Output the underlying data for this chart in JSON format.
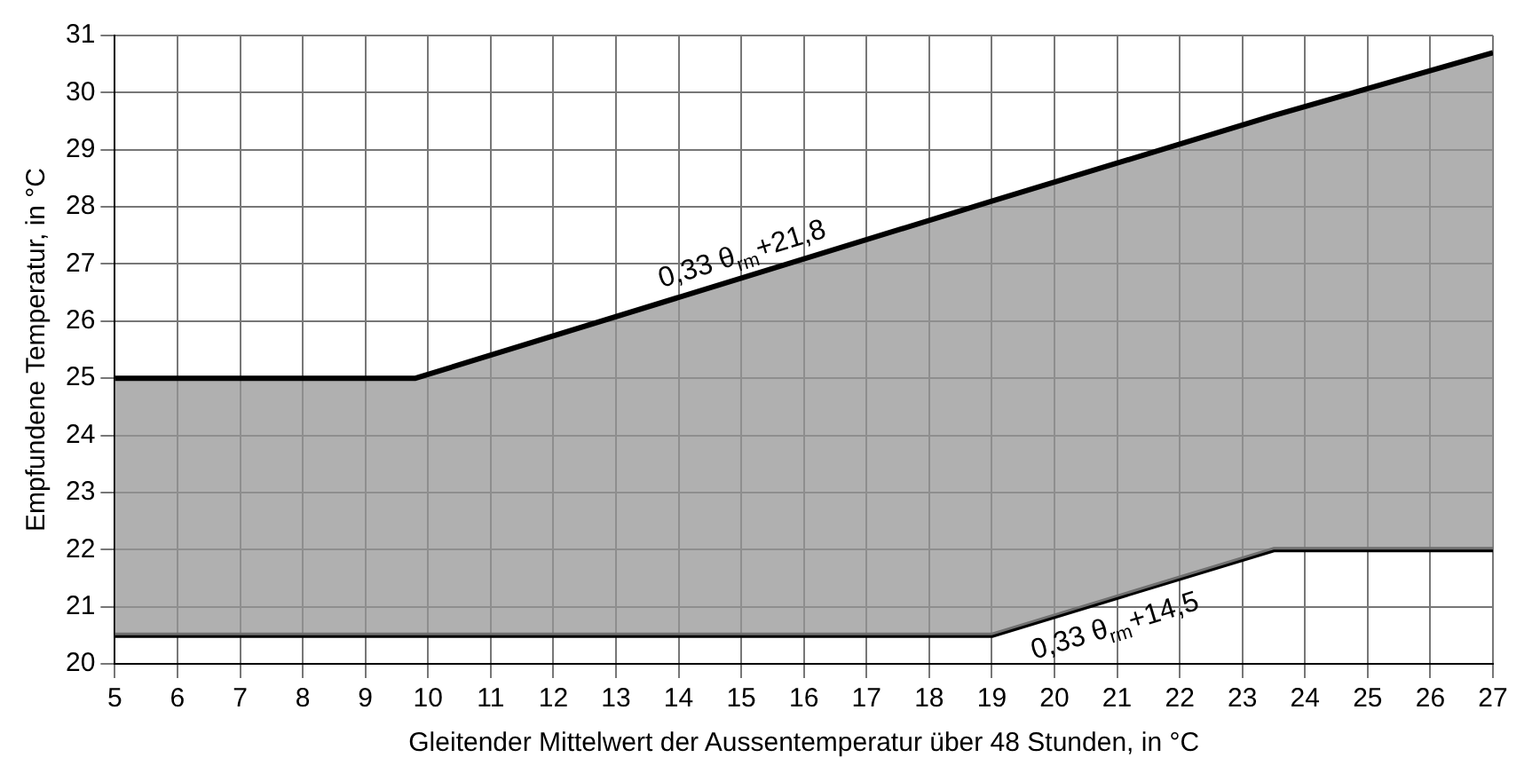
{
  "chart_data": {
    "type": "area",
    "xlabel": "Gleitender Mittelwert der Aussentemperatur über 48 Stunden, in °C",
    "ylabel": "Empfundene Temperatur, in °C",
    "x": [
      5,
      9.8,
      19,
      23.5,
      27
    ],
    "series": [
      {
        "color": "#000000",
        "values": [
          25,
          25,
          28.1,
          29.6,
          30.7
        ]
      },
      {
        "type": "line",
        "color": "#000000",
        "values": [
          20.5,
          20.5,
          20.5,
          22,
          22
        ]
      }
    ],
    "xlim": [
      5,
      27
    ],
    "xticks": [
      5,
      6,
      7,
      8,
      9,
      10,
      11,
      12,
      13,
      14,
      15,
      16,
      17,
      18,
      19,
      20,
      21,
      22,
      23,
      24,
      25,
      26,
      27
    ],
    "ylim": [
      20,
      31
    ],
    "yticks": [
      20,
      21,
      22,
      23,
      24,
      25,
      26,
      27,
      28,
      29,
      30,
      31
    ],
    "grid": true,
    "legend": false,
    "marker": "none",
    "line_style": "solid",
    "annotations": [
      "0,33 θ$_{rm}$+21,8",
      "0,33 θ$_{rm}$+14,5"
    ]
  }
}
